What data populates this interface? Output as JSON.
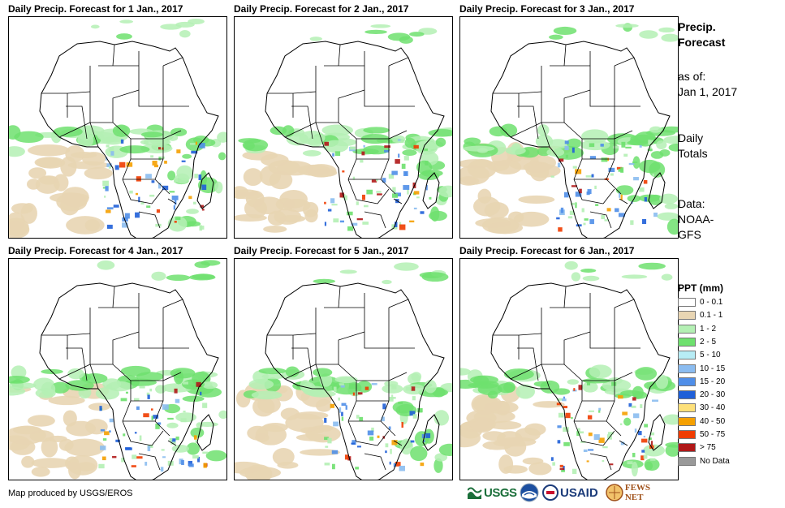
{
  "panels": [
    {
      "title": "Daily Precip. Forecast for 1 Jan., 2017"
    },
    {
      "title": "Daily Precip. Forecast for 2 Jan., 2017"
    },
    {
      "title": "Daily Precip. Forecast for 3 Jan., 2017"
    },
    {
      "title": "Daily Precip. Forecast for 4 Jan., 2017"
    },
    {
      "title": "Daily Precip. Forecast for 5 Jan., 2017"
    },
    {
      "title": "Daily Precip. Forecast for 6 Jan., 2017"
    }
  ],
  "sidebar": {
    "title_line1": "Precip.",
    "title_line2": "Forecast",
    "asof_label": "as of:",
    "asof_date": "Jan 1, 2017",
    "totals_line1": "Daily",
    "totals_line2": "Totals",
    "data_line1": "Data:",
    "data_line2": "NOAA-",
    "data_line3": "GFS"
  },
  "legend": {
    "title": "PPT (mm)",
    "items": [
      {
        "label": "0 - 0.1",
        "color": "#ffffff"
      },
      {
        "label": "0.1 - 1",
        "color": "#e8d5b3"
      },
      {
        "label": "1 - 2",
        "color": "#b4f0b4"
      },
      {
        "label": "2 - 5",
        "color": "#6ee06e"
      },
      {
        "label": "5 - 10",
        "color": "#b7ecf5"
      },
      {
        "label": "10 - 15",
        "color": "#8bbcf0"
      },
      {
        "label": "15 - 20",
        "color": "#4f8ee8"
      },
      {
        "label": "20 - 30",
        "color": "#1f5fd8"
      },
      {
        "label": "30 - 40",
        "color": "#fde07a"
      },
      {
        "label": "40 - 50",
        "color": "#f5a000"
      },
      {
        "label": "50 - 75",
        "color": "#f03c00"
      },
      {
        "label": "> 75",
        "color": "#b01818"
      },
      {
        "label": "No Data",
        "color": "#999999"
      }
    ]
  },
  "footer": {
    "credit": "Map produced by USGS/EROS"
  },
  "logos": {
    "usgs": "USGS",
    "usaid": "USAID",
    "fews": "FEWS NET"
  }
}
